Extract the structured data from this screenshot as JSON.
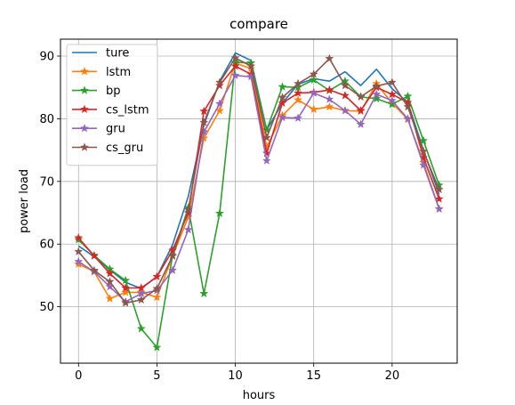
{
  "chart_data": {
    "type": "line",
    "title": "compare",
    "xlabel": "hours",
    "ylabel": "power load",
    "xlim": [
      -1.15,
      24.15
    ],
    "ylim": [
      41.0,
      92.7
    ],
    "xticks": [
      0,
      5,
      10,
      15,
      20
    ],
    "yticks": [
      50,
      60,
      70,
      80,
      90
    ],
    "grid": true,
    "legend_position": "top-left",
    "x": [
      0,
      1,
      2,
      3,
      4,
      5,
      6,
      7,
      8,
      9,
      10,
      11,
      12,
      13,
      14,
      15,
      16,
      17,
      18,
      19,
      20,
      21,
      22,
      23
    ],
    "series": [
      {
        "name": "ture",
        "color": "#1f77b4",
        "marker": "none",
        "values": [
          59.7,
          58.0,
          55.9,
          53.9,
          52.9,
          54.8,
          59.9,
          67.6,
          79.0,
          86.0,
          90.5,
          89.3,
          78.2,
          82.5,
          85.5,
          86.4,
          86.0,
          87.5,
          85.3,
          87.9,
          84.8,
          82.6,
          75.0,
          67.9
        ]
      },
      {
        "name": "lstm",
        "color": "#ff7f0e",
        "marker": "star",
        "values": [
          56.8,
          55.6,
          51.3,
          52.3,
          52.3,
          51.5,
          58.1,
          64.3,
          76.9,
          81.3,
          88.9,
          88.0,
          75.5,
          80.5,
          83.0,
          81.5,
          81.9,
          81.3,
          81.2,
          85.6,
          82.5,
          79.9,
          73.0,
          65.6
        ]
      },
      {
        "name": "bp",
        "color": "#2ca02c",
        "marker": "star",
        "values": [
          60.7,
          58.2,
          56.0,
          54.2,
          46.5,
          43.5,
          58.2,
          65.8,
          52.1,
          64.9,
          89.0,
          88.9,
          78.2,
          85.1,
          85.0,
          86.2,
          84.5,
          86.0,
          83.5,
          83.2,
          82.3,
          83.6,
          76.5,
          69.4
        ]
      },
      {
        "name": "cs_lstm",
        "color": "#d62728",
        "marker": "star",
        "values": [
          61.0,
          58.1,
          55.3,
          53.0,
          53.0,
          54.8,
          59.0,
          65.0,
          81.2,
          85.3,
          88.4,
          87.1,
          74.5,
          82.5,
          84.1,
          84.2,
          84.6,
          83.7,
          81.3,
          85.0,
          83.9,
          82.6,
          73.8,
          67.2
        ]
      },
      {
        "name": "gru",
        "color": "#9467bd",
        "marker": "star",
        "values": [
          57.2,
          55.6,
          53.2,
          50.8,
          52.1,
          52.6,
          55.8,
          62.3,
          77.9,
          82.4,
          86.9,
          86.7,
          73.3,
          80.2,
          80.1,
          84.1,
          83.1,
          81.3,
          79.1,
          83.9,
          82.9,
          80.0,
          72.6,
          65.6
        ]
      },
      {
        "name": "cs_gru",
        "color": "#8c564b",
        "marker": "star",
        "values": [
          58.8,
          55.8,
          54.0,
          50.6,
          51.1,
          52.9,
          58.1,
          65.5,
          79.4,
          85.8,
          89.7,
          88.4,
          77.0,
          83.4,
          85.6,
          87.1,
          89.6,
          85.3,
          83.5,
          85.2,
          85.8,
          81.9,
          74.8,
          68.7
        ]
      }
    ]
  }
}
